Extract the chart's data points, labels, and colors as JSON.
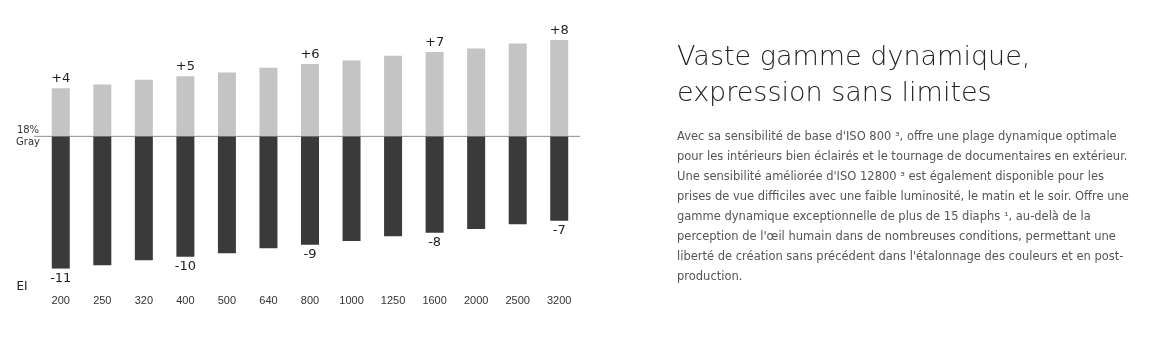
{
  "chart_data": {
    "type": "bar",
    "title": "Vaste gamme dynamique, expression sans limites",
    "xlabel": "EI",
    "categories": [
      "200",
      "250",
      "320",
      "400",
      "500",
      "640",
      "800",
      "1000",
      "1250",
      "1600",
      "2000",
      "2500",
      "3200"
    ],
    "stacked": true,
    "series": [
      {
        "color": "#c4c4c4",
        "values": [
          4,
          4.3,
          4.7,
          5,
          5.3,
          5.7,
          6,
          6.3,
          6.7,
          7,
          7.3,
          7.7,
          8
        ],
        "value_labels": [
          "+4",
          null,
          null,
          "+5",
          null,
          null,
          "+6",
          null,
          null,
          "+7",
          null,
          null,
          "+8"
        ]
      },
      {
        "color": "#3a3a3a",
        "values": [
          -11,
          -10.7,
          -10.3,
          -10,
          -9.7,
          -9.3,
          -9,
          -8.7,
          -8.3,
          -8,
          -7.7,
          -7.3,
          -7
        ],
        "value_labels": [
          "-11",
          null,
          null,
          "-10",
          null,
          null,
          "-9",
          null,
          null,
          "-8",
          null,
          null,
          "-7"
        ]
      }
    ],
    "tick_labels": "x",
    "grid": false,
    "legend": false,
    "ref_lines": [
      {
        "axis": "y",
        "value": 0,
        "label": "18% Gray",
        "color": "#8c8c8c"
      }
    ],
    "annotations": [
      "Avec sa sensibilité de base d'ISO 800 ³, offre une plage dynamique optimale pour les intérieurs bien éclairés et le tournage de documentaires en extérieur. Une sensibilité améliorée d'ISO 12800 ³ est également disponible pour les prises de vue difficiles avec une faible luminosité, le matin et le soir. Offre une gamme dynamique exceptionnelle de plus de 15 diaphs ¹, au-delà de la perception de l'œil humain dans de nombreuses conditions, permettant une liberté de création sans précédent dans l'étalonnage des couleurs et en post-production."
    ]
  }
}
